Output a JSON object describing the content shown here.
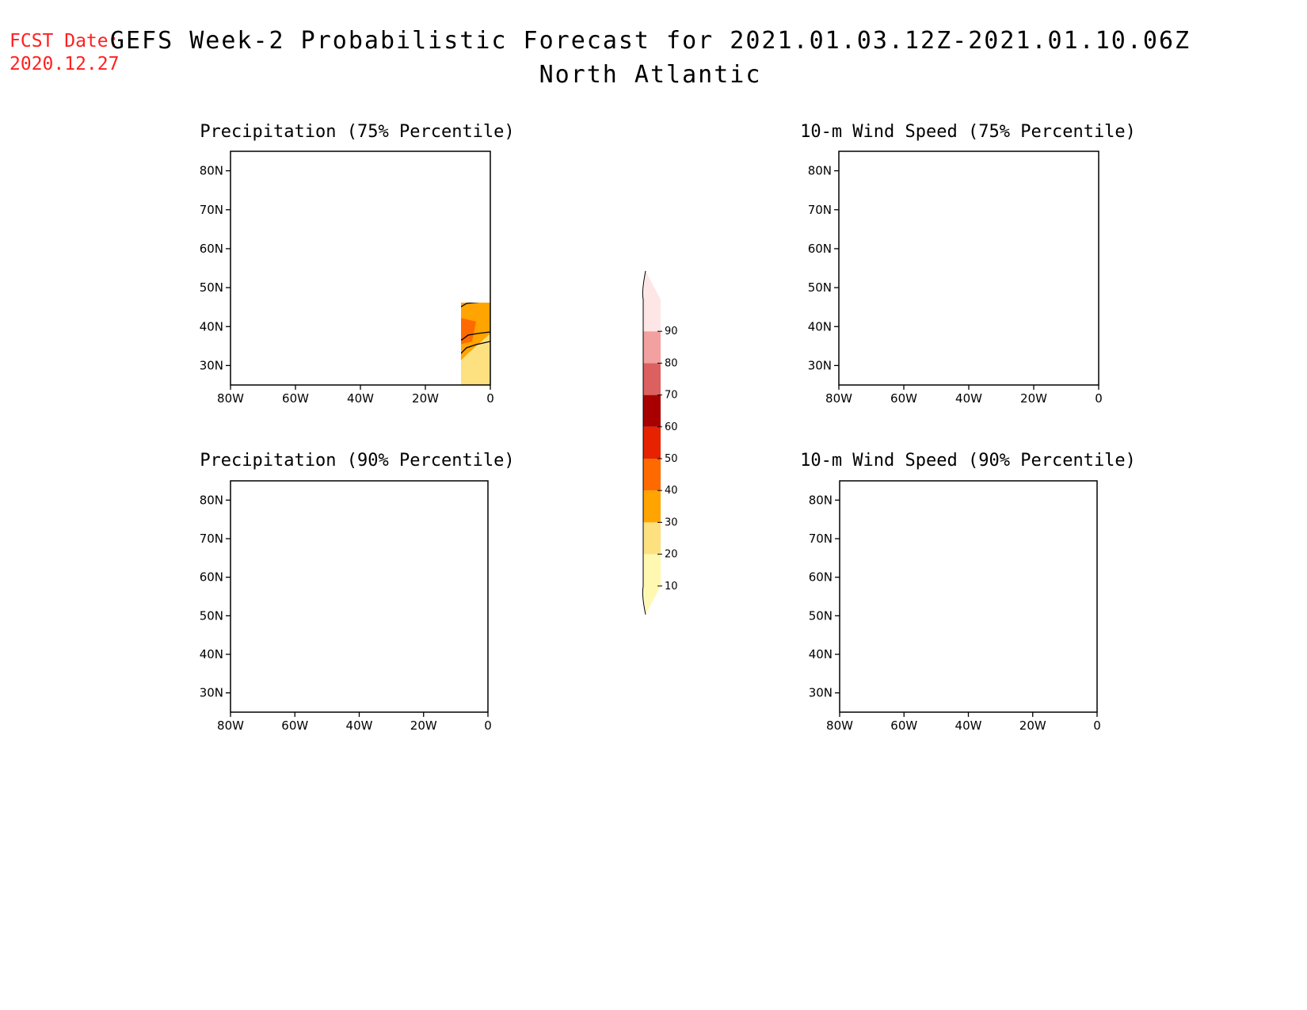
{
  "header": {
    "fcst_label": "FCST Date:",
    "fcst_date": "2020.12.27",
    "title": "GEFS Week-2 Probabilistic Forecast for 2021.01.03.12Z-2021.01.10.06Z",
    "region": "North Atlantic"
  },
  "panels": [
    {
      "id": "precip-75",
      "title": "Precipitation (75% Percentile)"
    },
    {
      "id": "wind-75",
      "title": "10-m Wind Speed (75% Percentile)"
    },
    {
      "id": "precip-90",
      "title": "Precipitation (90% Percentile)"
    },
    {
      "id": "wind-90",
      "title": "10-m Wind Speed (90% Percentile)"
    }
  ],
  "axes": {
    "lat_labels": [
      "80N",
      "70N",
      "60N",
      "50N",
      "40N",
      "30N"
    ],
    "lon_labels": [
      "80W",
      "60W",
      "40W",
      "20W",
      "0"
    ]
  },
  "colorbar": {
    "levels": [
      "10",
      "20",
      "30",
      "40",
      "50",
      "60",
      "70",
      "80",
      "90"
    ],
    "colors": [
      "#fff8b0",
      "#fde080",
      "#ffa400",
      "#ff6a00",
      "#e62200",
      "#a80000",
      "#dd6060",
      "#f2a0a0",
      "#ffe6e6"
    ]
  }
}
